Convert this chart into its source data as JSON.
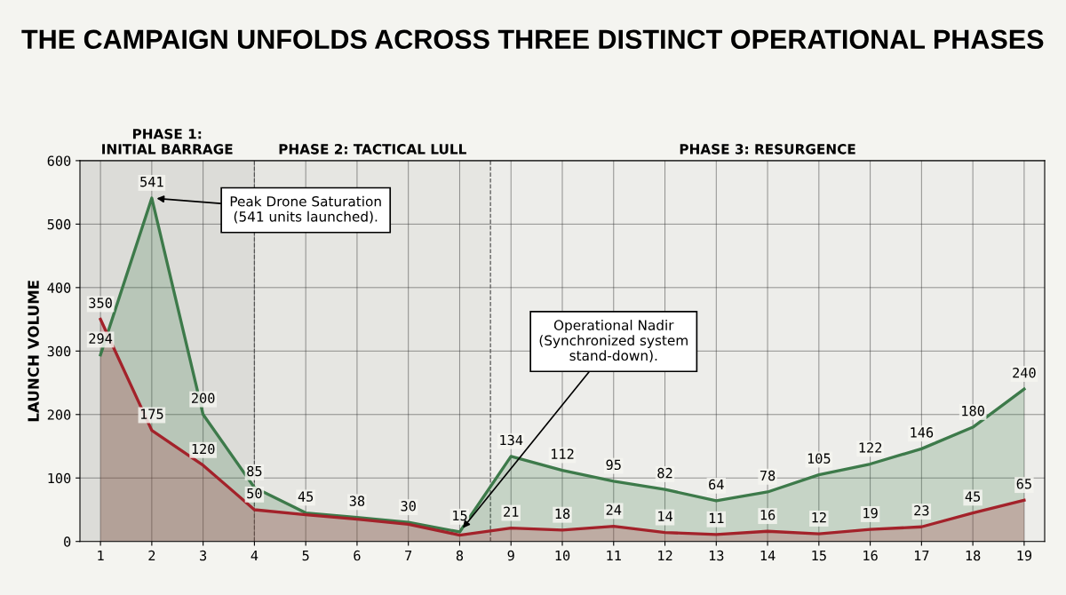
{
  "chart_data": {
    "type": "area",
    "title": "THE CAMPAIGN UNFOLDS ACROSS THREE DISTINCT OPERATIONAL PHASES",
    "ylabel": "LAUNCH VOLUME",
    "x": [
      1,
      2,
      3,
      4,
      5,
      6,
      7,
      8,
      9,
      10,
      11,
      12,
      13,
      14,
      15,
      16,
      17,
      18,
      19
    ],
    "xlim": [
      0.6,
      19.4
    ],
    "xticks": [
      1,
      2,
      3,
      4,
      5,
      6,
      7,
      8,
      9,
      10,
      11,
      12,
      13,
      14,
      15,
      16,
      17,
      18,
      19
    ],
    "ylim": [
      0,
      600
    ],
    "yticks": [
      0,
      100,
      200,
      300,
      400,
      500,
      600
    ],
    "grid": true,
    "legend": false,
    "marker": "none",
    "line_style": "solid",
    "series": [
      {
        "color": "#3d7a4a",
        "values": [
          294,
          541,
          200,
          85,
          45,
          38,
          30,
          15,
          134,
          112,
          95,
          82,
          64,
          78,
          105,
          122,
          146,
          180,
          240
        ],
        "value_labels": [
          "294",
          "541",
          "200",
          "85",
          "45",
          "38",
          "30",
          "15",
          "134",
          "112",
          "95",
          "82",
          "64",
          "78",
          "105",
          "122",
          "146",
          "180",
          "240"
        ]
      },
      {
        "color": "#a3222a",
        "values": [
          350,
          175,
          120,
          50,
          42,
          35,
          27,
          10,
          21,
          18,
          24,
          14,
          11,
          16,
          12,
          19,
          23,
          45,
          65
        ],
        "value_labels": [
          "350",
          "175",
          "120",
          "50",
          null,
          null,
          null,
          null,
          "21",
          "18",
          "24",
          "14",
          "11",
          "16",
          "12",
          "19",
          "23",
          "45",
          "65"
        ]
      }
    ],
    "bands": [
      {
        "axis": "x",
        "from": 0.6,
        "to": 4,
        "label": "PHASE 1:\nINITIAL BARRAGE",
        "color": "#dcdcd8"
      },
      {
        "axis": "x",
        "from": 4,
        "to": 8.6,
        "label": "PHASE 2: TACTICAL LULL",
        "color": "#e6e6e2"
      },
      {
        "axis": "x",
        "from": 8.6,
        "to": 19.4,
        "label": "PHASE 3: RESURGENCE",
        "color": "#ededea"
      }
    ],
    "ref_lines": [
      {
        "axis": "x",
        "value": 4,
        "label": null,
        "color": "#555555",
        "line_style": "dashed"
      },
      {
        "axis": "x",
        "value": 8.6,
        "label": null,
        "color": "#555555",
        "line_style": "dashed"
      }
    ],
    "annotations": [
      {
        "text": "Peak Drone Saturation\n(541 units launched).",
        "x": 2,
        "y": 541
      },
      {
        "text": "Operational Nadir\n(Synchronized system\nstand-down).",
        "x": 8,
        "y": 15
      }
    ]
  }
}
